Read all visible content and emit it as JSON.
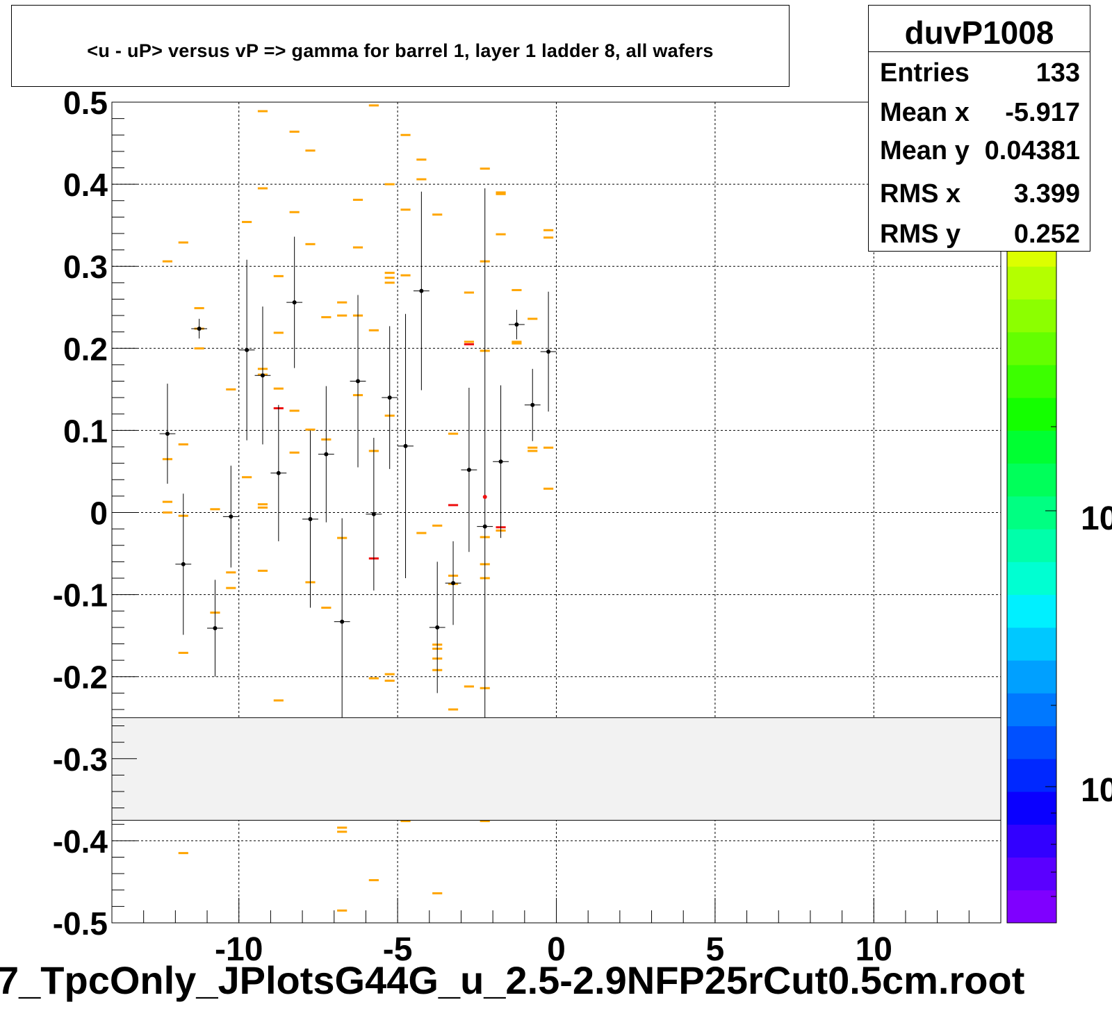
{
  "title": "<u - uP>       versus   vP =>  gamma for barrel 1, layer 1 ladder 8, all wafers",
  "bottom_title": "7_TpcOnly_JPlotsG44G_u_2.5-2.9NFP25rCut0.5cm.root",
  "stats": {
    "name": "duvP1008",
    "rows": [
      {
        "label": "Entries",
        "value": "133"
      },
      {
        "label": "Mean x",
        "value": "-5.917"
      },
      {
        "label": "Mean y",
        "value": "0.04381"
      },
      {
        "label": "RMS x",
        "value": "3.399"
      },
      {
        "label": "RMS y",
        "value": "0.252"
      }
    ]
  },
  "colors": {
    "frame": "#000000",
    "grid": "#000000",
    "orange_cell": "#ffa500",
    "red_cell": "#ee1111",
    "marker": "#000000",
    "band": "#f2f2f2",
    "palette": [
      "#7f00ff",
      "#5a00ff",
      "#3200ff",
      "#0a00ff",
      "#0028ff",
      "#0050ff",
      "#0078ff",
      "#00a0ff",
      "#00c8ff",
      "#00f0ff",
      "#00ffd2",
      "#00ffaa",
      "#00ff82",
      "#00ff5a",
      "#00ff32",
      "#14ff00",
      "#3cff00",
      "#64ff00",
      "#8cff00",
      "#b4ff00",
      "#dcff00",
      "#ffff00",
      "#ffd700",
      "#ffaf00",
      "#ff8700"
    ]
  },
  "chart_data": {
    "type": "scatter",
    "title": "<u - uP>       versus   vP =>  gamma for barrel 1, layer 1 ladder 8, all wafers",
    "xlabel": "",
    "ylabel": "",
    "xlim": [
      -14,
      14
    ],
    "ylim": [
      -0.5,
      0.5
    ],
    "x_ticks": [
      -10,
      -5,
      0,
      5,
      10
    ],
    "y_ticks": [
      -0.5,
      -0.4,
      -0.3,
      -0.2,
      -0.1,
      0,
      0.1,
      0.2,
      0.3,
      0.4,
      0.5
    ],
    "x_tick_labels": [
      "-10",
      "-5",
      "0",
      "5",
      "10"
    ],
    "y_tick_labels": [
      "-0.5",
      "-0.4",
      "-0.3",
      "-0.2",
      "-0.1",
      "0",
      "0.1",
      "0.2",
      "0.3",
      "0.4",
      "0.5"
    ],
    "grid": true,
    "palette_labels": [
      "10",
      "10"
    ],
    "bin_width_x": 0.5,
    "band_y": [
      -0.375,
      -0.25
    ],
    "cells_orange": [
      [
        -12.25,
        0.306
      ],
      [
        -12.25,
        0.065
      ],
      [
        -12.25,
        0.013
      ],
      [
        -12.25,
        0.0
      ],
      [
        -11.75,
        0.329
      ],
      [
        -11.75,
        0.083
      ],
      [
        -11.75,
        -0.004
      ],
      [
        -11.75,
        -0.171
      ],
      [
        -11.75,
        -0.415
      ],
      [
        -11.25,
        0.249
      ],
      [
        -11.25,
        0.224
      ],
      [
        -11.25,
        0.2
      ],
      [
        -10.75,
        0.004
      ],
      [
        -10.75,
        -0.122
      ],
      [
        -10.25,
        0.15
      ],
      [
        -10.25,
        -0.073
      ],
      [
        -10.25,
        -0.092
      ],
      [
        -9.75,
        0.354
      ],
      [
        -9.75,
        0.043
      ],
      [
        -9.25,
        0.489
      ],
      [
        -9.25,
        0.395
      ],
      [
        -9.25,
        0.175
      ],
      [
        -9.25,
        0.168
      ],
      [
        -9.25,
        0.01
      ],
      [
        -9.25,
        0.006
      ],
      [
        -9.25,
        -0.071
      ],
      [
        -8.75,
        0.288
      ],
      [
        -8.75,
        0.219
      ],
      [
        -8.75,
        0.151
      ],
      [
        -8.75,
        -0.229
      ],
      [
        -8.25,
        0.464
      ],
      [
        -8.25,
        0.366
      ],
      [
        -8.25,
        0.124
      ],
      [
        -8.25,
        0.073
      ],
      [
        -7.75,
        0.441
      ],
      [
        -7.75,
        0.327
      ],
      [
        -7.75,
        0.101
      ],
      [
        -7.75,
        -0.085
      ],
      [
        -7.25,
        0.238
      ],
      [
        -7.25,
        0.089
      ],
      [
        -7.25,
        -0.116
      ],
      [
        -6.75,
        0.256
      ],
      [
        -6.75,
        0.24
      ],
      [
        -6.75,
        -0.031
      ],
      [
        -6.75,
        -0.384
      ],
      [
        -6.75,
        -0.389
      ],
      [
        -6.75,
        -0.485
      ],
      [
        -6.25,
        0.381
      ],
      [
        -6.25,
        0.323
      ],
      [
        -6.25,
        0.24
      ],
      [
        -6.25,
        0.143
      ],
      [
        -5.75,
        0.496
      ],
      [
        -5.75,
        0.222
      ],
      [
        -5.75,
        0.075
      ],
      [
        -5.75,
        -0.202
      ],
      [
        -5.75,
        -0.448
      ],
      [
        -5.25,
        0.4
      ],
      [
        -5.25,
        0.292
      ],
      [
        -5.25,
        0.286
      ],
      [
        -5.25,
        0.28
      ],
      [
        -5.25,
        0.118
      ],
      [
        -5.25,
        -0.197
      ],
      [
        -5.25,
        -0.205
      ],
      [
        -4.75,
        0.46
      ],
      [
        -4.75,
        0.369
      ],
      [
        -4.75,
        0.289
      ],
      [
        -4.75,
        -0.376
      ],
      [
        -4.25,
        0.43
      ],
      [
        -4.25,
        0.406
      ],
      [
        -4.25,
        -0.025
      ],
      [
        -3.75,
        0.363
      ],
      [
        -3.75,
        -0.016
      ],
      [
        -3.75,
        -0.161
      ],
      [
        -3.75,
        -0.166
      ],
      [
        -3.75,
        -0.178
      ],
      [
        -3.75,
        -0.192
      ],
      [
        -3.75,
        -0.464
      ],
      [
        -3.25,
        0.096
      ],
      [
        -3.25,
        -0.077
      ],
      [
        -3.25,
        -0.087
      ],
      [
        -3.25,
        -0.24
      ],
      [
        -2.75,
        0.268
      ],
      [
        -2.75,
        0.208
      ],
      [
        -2.75,
        -0.212
      ],
      [
        -2.25,
        0.419
      ],
      [
        -2.25,
        0.306
      ],
      [
        -2.25,
        0.197
      ],
      [
        -2.25,
        -0.03
      ],
      [
        -2.25,
        -0.063
      ],
      [
        -2.25,
        -0.08
      ],
      [
        -2.25,
        -0.214
      ],
      [
        -2.25,
        -0.376
      ],
      [
        -1.75,
        0.39
      ],
      [
        -1.75,
        0.388
      ],
      [
        -1.75,
        0.339
      ],
      [
        -1.75,
        -0.022
      ],
      [
        -1.25,
        0.271
      ],
      [
        -1.25,
        0.208
      ],
      [
        -1.25,
        0.206
      ],
      [
        -0.75,
        0.236
      ],
      [
        -0.75,
        0.079
      ],
      [
        -0.75,
        0.075
      ],
      [
        -0.25,
        0.344
      ],
      [
        -0.25,
        0.335
      ],
      [
        -0.25,
        0.079
      ],
      [
        -0.25,
        0.029
      ]
    ],
    "cells_red": [
      [
        -8.75,
        0.127
      ],
      [
        -5.75,
        -0.056
      ],
      [
        -3.25,
        0.009
      ],
      [
        -2.75,
        0.205
      ],
      [
        -1.75,
        -0.018
      ]
    ],
    "profile_points": [
      {
        "x": -12.25,
        "y": 0.096,
        "err": 0.061
      },
      {
        "x": -11.75,
        "y": -0.063,
        "err": 0.086
      },
      {
        "x": -11.25,
        "y": 0.224,
        "err": 0.012
      },
      {
        "x": -10.75,
        "y": -0.141,
        "err": 0.059
      },
      {
        "x": -10.25,
        "y": -0.005,
        "err": 0.062
      },
      {
        "x": -9.75,
        "y": 0.198,
        "err": 0.11
      },
      {
        "x": -9.25,
        "y": 0.167,
        "err": 0.084
      },
      {
        "x": -8.75,
        "y": 0.048,
        "err": 0.083
      },
      {
        "x": -8.25,
        "y": 0.256,
        "err": 0.08
      },
      {
        "x": -7.75,
        "y": -0.008,
        "err": 0.108
      },
      {
        "x": -7.25,
        "y": 0.071,
        "err": 0.083
      },
      {
        "x": -6.75,
        "y": -0.133,
        "err": 0.126
      },
      {
        "x": -6.25,
        "y": 0.16,
        "err": 0.105
      },
      {
        "x": -5.75,
        "y": -0.002,
        "err": 0.093
      },
      {
        "x": -5.25,
        "y": 0.14,
        "err": 0.087
      },
      {
        "x": -4.75,
        "y": 0.081,
        "err": 0.161
      },
      {
        "x": -4.25,
        "y": 0.27,
        "err": 0.121
      },
      {
        "x": -3.75,
        "y": -0.14,
        "err": 0.08
      },
      {
        "x": -3.25,
        "y": -0.086,
        "err": 0.051
      },
      {
        "x": -2.75,
        "y": 0.052,
        "err": 0.1
      },
      {
        "x": -2.25,
        "y": -0.017,
        "err": 0.412
      },
      {
        "x": -1.75,
        "y": 0.062,
        "err": 0.093
      },
      {
        "x": -1.25,
        "y": 0.229,
        "err": 0.018
      },
      {
        "x": -0.75,
        "y": 0.131,
        "err": 0.044
      },
      {
        "x": -0.25,
        "y": 0.196,
        "err": 0.073
      }
    ],
    "red_marker": {
      "x": -2.25,
      "y": 0.019
    }
  }
}
